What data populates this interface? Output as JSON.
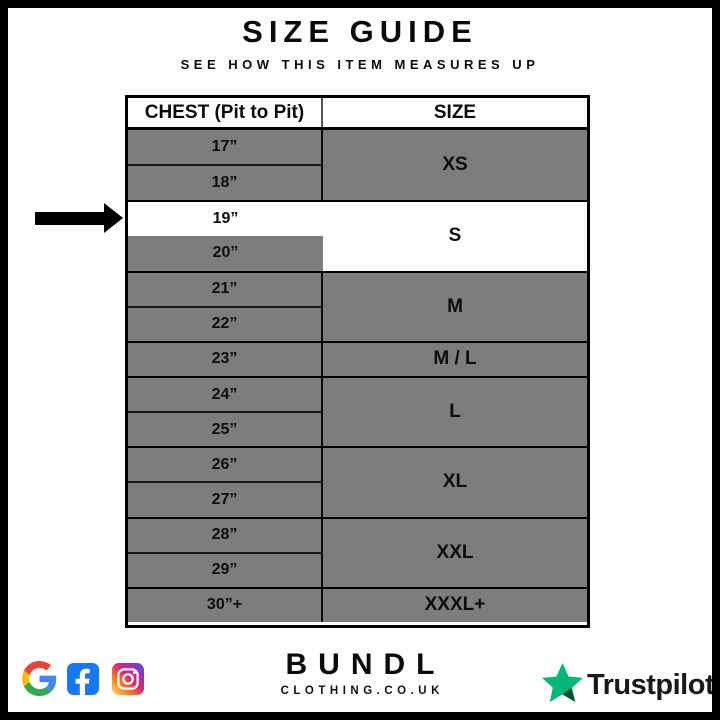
{
  "page": {
    "title": "SIZE GUIDE",
    "subtitle": "SEE HOW THIS ITEM MEASURES UP"
  },
  "chart_data": {
    "type": "table",
    "title": "SIZE GUIDE",
    "columns": [
      "CHEST (Pit to Pit)",
      "SIZE"
    ],
    "rows": [
      [
        "17”",
        "XS"
      ],
      [
        "18”",
        "XS"
      ],
      [
        "19”",
        "S"
      ],
      [
        "20”",
        "S"
      ],
      [
        "21”",
        "M"
      ],
      [
        "22”",
        "M"
      ],
      [
        "23”",
        "M / L"
      ],
      [
        "24”",
        "L"
      ],
      [
        "25”",
        "L"
      ],
      [
        "26”",
        "XL"
      ],
      [
        "27”",
        "XL"
      ],
      [
        "28”",
        "XXL"
      ],
      [
        "29”",
        "XXL"
      ],
      [
        "30”+",
        "XXXL+"
      ]
    ],
    "highlighted_row": {
      "chest": "19”",
      "size": "S"
    }
  },
  "table": {
    "columns": [
      {
        "label": "CHEST (Pit to Pit)"
      },
      {
        "label": "SIZE"
      }
    ],
    "row_groups": [
      {
        "size": "XS",
        "chest_values": [
          "17”",
          "18”"
        ],
        "highlighted": false
      },
      {
        "size": "S",
        "chest_values": [
          "19”",
          "20”"
        ],
        "highlighted": true,
        "arrow_points_to": "19”"
      },
      {
        "size": "M",
        "chest_values": [
          "21”",
          "22”"
        ],
        "highlighted": false
      },
      {
        "size": "M / L",
        "chest_values": [
          "23”"
        ],
        "highlighted": false
      },
      {
        "size": "L",
        "chest_values": [
          "24”",
          "25”"
        ],
        "highlighted": false
      },
      {
        "size": "XL",
        "chest_values": [
          "26”",
          "27”"
        ],
        "highlighted": false
      },
      {
        "size": "XXL",
        "chest_values": [
          "28”",
          "29”"
        ],
        "highlighted": false
      },
      {
        "size": "XXXL+",
        "chest_values": [
          "30”+"
        ],
        "highlighted": false
      }
    ]
  },
  "footer": {
    "social_icons": [
      "google-icon",
      "facebook-icon",
      "instagram-icon"
    ],
    "brand": {
      "name": "BUNDL",
      "tagline": "CLOTHING.CO.UK"
    },
    "trustpilot_label": "Trustpilot"
  },
  "colors": {
    "row_gray": "#7d7d7d",
    "highlight_white": "#ffffff",
    "border_black": "#000000",
    "facebook_blue": "#1877F2",
    "trustpilot_green": "#00B67A",
    "trustpilot_dark_green": "#005128",
    "google_blue": "#4285F4",
    "google_red": "#EA4335",
    "google_yellow": "#FBBC05",
    "google_green": "#34A853",
    "instagram_gradient": [
      "#FEDA75",
      "#FA7E1E",
      "#D62976",
      "#962FBF",
      "#4F5BD5"
    ]
  }
}
